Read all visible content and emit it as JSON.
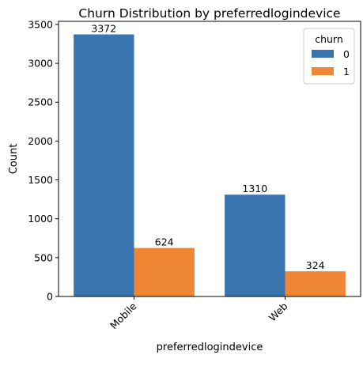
{
  "chart_data": {
    "type": "bar",
    "title": "Churn Distribution by preferredlogindevice",
    "xlabel": "preferredlogindevice",
    "ylabel": "Count",
    "categories": [
      "Mobile",
      "Web"
    ],
    "series": [
      {
        "name": "0",
        "values": [
          3372,
          1310
        ],
        "color": "#3b75af"
      },
      {
        "name": "1",
        "values": [
          624,
          324
        ],
        "color": "#ef8636"
      }
    ],
    "ylim": [
      0,
      3540
    ],
    "yticks": [
      0,
      500,
      1000,
      1500,
      2000,
      2500,
      3000,
      3500
    ],
    "legend": {
      "title": "churn",
      "position": "top-right"
    },
    "grid": false
  }
}
